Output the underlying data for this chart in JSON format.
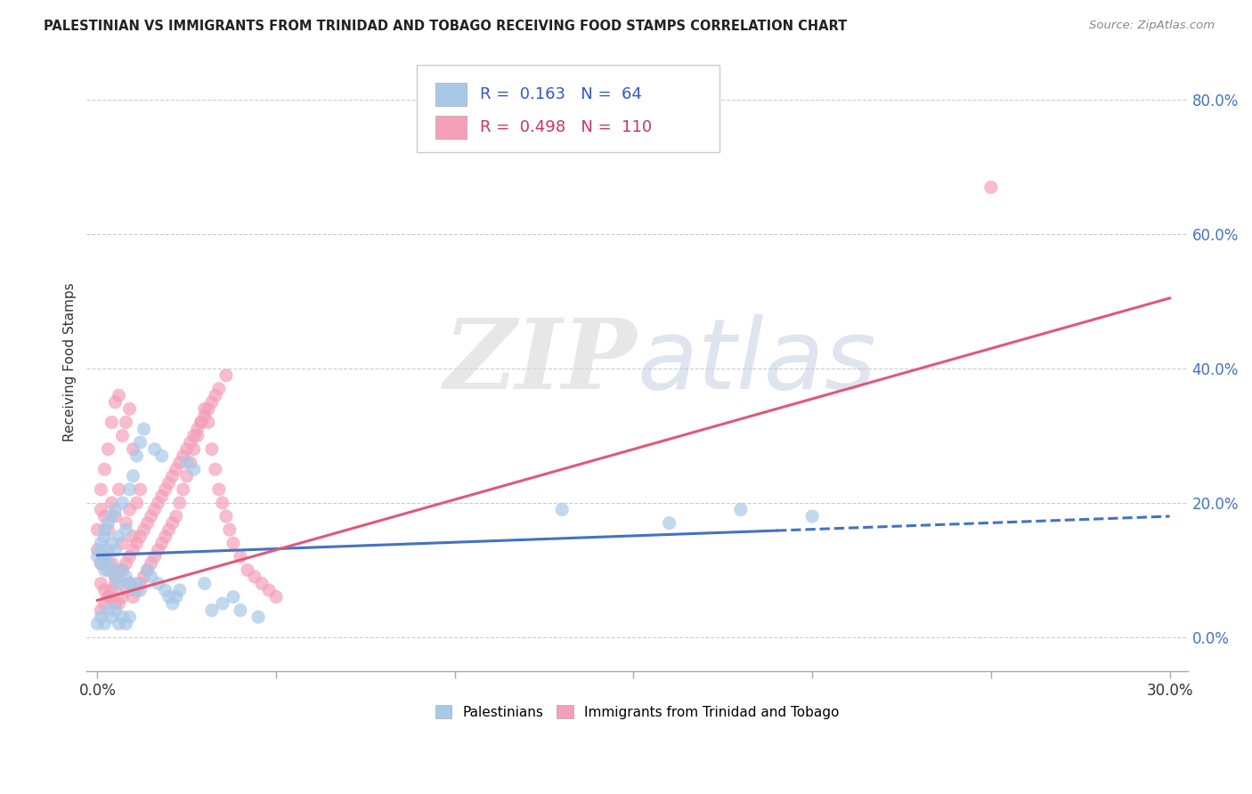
{
  "title": "PALESTINIAN VS IMMIGRANTS FROM TRINIDAD AND TOBAGO RECEIVING FOOD STAMPS CORRELATION CHART",
  "source": "Source: ZipAtlas.com",
  "ylabel": "Receiving Food Stamps",
  "xlim": [
    -0.003,
    0.305
  ],
  "ylim": [
    -0.05,
    0.87
  ],
  "ytick_vals": [
    0.0,
    0.2,
    0.4,
    0.6,
    0.8
  ],
  "xtick_positions": [
    0.0,
    0.05,
    0.1,
    0.15,
    0.2,
    0.25,
    0.3
  ],
  "xtick_labels_show": [
    "0.0%",
    "",
    "",
    "",
    "",
    "",
    "30.0%"
  ],
  "blue_R": "0.163",
  "blue_N": "64",
  "pink_R": "0.498",
  "pink_N": "110",
  "blue_color": "#A8C8E8",
  "pink_color": "#F4A0B8",
  "blue_line_color": "#4472C4",
  "pink_line_color": "#E05878",
  "watermark_zip": "ZIP",
  "watermark_atlas": "atlas",
  "legend_label_blue": "Palestinians",
  "legend_label_pink": "Immigrants from Trinidad and Tobago",
  "blue_scatter_x": [
    0.0,
    0.001,
    0.001,
    0.001,
    0.002,
    0.002,
    0.002,
    0.002,
    0.003,
    0.003,
    0.003,
    0.004,
    0.004,
    0.004,
    0.005,
    0.005,
    0.005,
    0.006,
    0.006,
    0.007,
    0.007,
    0.008,
    0.008,
    0.009,
    0.009,
    0.01,
    0.01,
    0.011,
    0.011,
    0.012,
    0.012,
    0.013,
    0.014,
    0.015,
    0.016,
    0.017,
    0.018,
    0.019,
    0.02,
    0.021,
    0.022,
    0.023,
    0.025,
    0.027,
    0.03,
    0.032,
    0.035,
    0.038,
    0.04,
    0.045,
    0.0,
    0.001,
    0.002,
    0.003,
    0.004,
    0.005,
    0.006,
    0.007,
    0.008,
    0.009,
    0.13,
    0.16,
    0.18,
    0.2
  ],
  "blue_scatter_y": [
    0.12,
    0.11,
    0.13,
    0.14,
    0.1,
    0.12,
    0.15,
    0.16,
    0.11,
    0.13,
    0.17,
    0.1,
    0.14,
    0.18,
    0.09,
    0.13,
    0.19,
    0.08,
    0.15,
    0.1,
    0.2,
    0.09,
    0.16,
    0.08,
    0.22,
    0.07,
    0.24,
    0.08,
    0.27,
    0.07,
    0.29,
    0.31,
    0.1,
    0.09,
    0.28,
    0.08,
    0.27,
    0.07,
    0.06,
    0.05,
    0.06,
    0.07,
    0.26,
    0.25,
    0.08,
    0.04,
    0.05,
    0.06,
    0.04,
    0.03,
    0.02,
    0.03,
    0.02,
    0.04,
    0.03,
    0.04,
    0.02,
    0.03,
    0.02,
    0.03,
    0.19,
    0.17,
    0.19,
    0.18
  ],
  "pink_scatter_x": [
    0.0,
    0.0,
    0.001,
    0.001,
    0.001,
    0.001,
    0.002,
    0.002,
    0.002,
    0.002,
    0.003,
    0.003,
    0.003,
    0.003,
    0.004,
    0.004,
    0.004,
    0.004,
    0.005,
    0.005,
    0.005,
    0.005,
    0.006,
    0.006,
    0.006,
    0.006,
    0.007,
    0.007,
    0.007,
    0.008,
    0.008,
    0.008,
    0.009,
    0.009,
    0.009,
    0.01,
    0.01,
    0.01,
    0.011,
    0.011,
    0.012,
    0.012,
    0.013,
    0.014,
    0.015,
    0.016,
    0.017,
    0.018,
    0.019,
    0.02,
    0.021,
    0.022,
    0.023,
    0.024,
    0.025,
    0.026,
    0.027,
    0.028,
    0.029,
    0.03,
    0.031,
    0.032,
    0.033,
    0.034,
    0.035,
    0.036,
    0.037,
    0.038,
    0.04,
    0.042,
    0.044,
    0.046,
    0.048,
    0.05,
    0.001,
    0.002,
    0.003,
    0.004,
    0.005,
    0.006,
    0.007,
    0.008,
    0.009,
    0.01,
    0.011,
    0.012,
    0.013,
    0.014,
    0.015,
    0.016,
    0.017,
    0.018,
    0.019,
    0.02,
    0.021,
    0.022,
    0.023,
    0.024,
    0.025,
    0.026,
    0.027,
    0.028,
    0.029,
    0.03,
    0.031,
    0.032,
    0.033,
    0.034,
    0.036,
    0.25
  ],
  "pink_scatter_y": [
    0.13,
    0.16,
    0.08,
    0.11,
    0.19,
    0.22,
    0.07,
    0.12,
    0.18,
    0.25,
    0.06,
    0.1,
    0.16,
    0.28,
    0.06,
    0.11,
    0.2,
    0.32,
    0.05,
    0.09,
    0.18,
    0.35,
    0.05,
    0.1,
    0.22,
    0.36,
    0.06,
    0.14,
    0.3,
    0.07,
    0.17,
    0.32,
    0.08,
    0.19,
    0.34,
    0.06,
    0.15,
    0.28,
    0.07,
    0.2,
    0.08,
    0.22,
    0.09,
    0.1,
    0.11,
    0.12,
    0.13,
    0.14,
    0.15,
    0.16,
    0.17,
    0.18,
    0.2,
    0.22,
    0.24,
    0.26,
    0.28,
    0.3,
    0.32,
    0.34,
    0.32,
    0.28,
    0.25,
    0.22,
    0.2,
    0.18,
    0.16,
    0.14,
    0.12,
    0.1,
    0.09,
    0.08,
    0.07,
    0.06,
    0.04,
    0.05,
    0.06,
    0.07,
    0.08,
    0.09,
    0.1,
    0.11,
    0.12,
    0.13,
    0.14,
    0.15,
    0.16,
    0.17,
    0.18,
    0.19,
    0.2,
    0.21,
    0.22,
    0.23,
    0.24,
    0.25,
    0.26,
    0.27,
    0.28,
    0.29,
    0.3,
    0.31,
    0.32,
    0.33,
    0.34,
    0.35,
    0.36,
    0.37,
    0.39,
    0.67
  ],
  "blue_trend_x0": 0.0,
  "blue_trend_y0": 0.122,
  "blue_trend_x1": 0.3,
  "blue_trend_y1": 0.18,
  "blue_trend_solid_end": 0.19,
  "pink_trend_x0": 0.0,
  "pink_trend_y0": 0.055,
  "pink_trend_x1": 0.3,
  "pink_trend_y1": 0.505
}
